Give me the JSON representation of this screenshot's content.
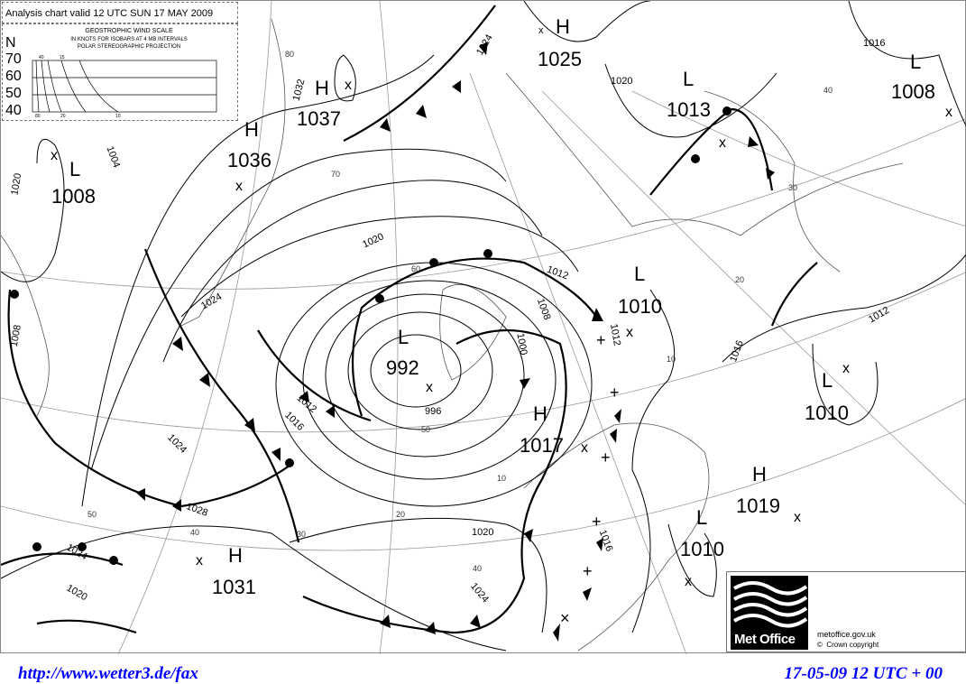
{
  "chart_title": "Analysis chart valid 12 UTC SUN 17 MAY 2009",
  "wind_scale": {
    "heading": "GEOSTROPHIC WIND SCALE",
    "line2": "IN KNOTS FOR ISOBARS AT  4 MB INTERVALS",
    "line3": "POLAR STEREOGRAPHIC PROJECTION",
    "latitude_unit": "N",
    "latitudes": [
      "70",
      "60",
      "50",
      "40"
    ],
    "top_labels": [
      "40",
      "15"
    ],
    "bottom_labels": [
      "80",
      "20",
      "10"
    ]
  },
  "pressure_centers": [
    {
      "type": "H",
      "value": "1025"
    },
    {
      "type": "L",
      "value": "1013"
    },
    {
      "type": "L",
      "value": "1008"
    },
    {
      "type": "H",
      "value": "1037"
    },
    {
      "type": "H",
      "value": "1036"
    },
    {
      "type": "L",
      "value": "1008"
    },
    {
      "type": "L",
      "value": "992"
    },
    {
      "type": "L",
      "value": "1010"
    },
    {
      "type": "H",
      "value": "1017"
    },
    {
      "type": "L",
      "value": "1010"
    },
    {
      "type": "H",
      "value": "1019"
    },
    {
      "type": "L",
      "value": "1010"
    },
    {
      "type": "H",
      "value": "1031"
    }
  ],
  "isobar_labels": [
    "1024",
    "1020",
    "1016",
    "1032",
    "1020",
    "1024",
    "1012",
    "1016",
    "1024",
    "1028",
    "1024",
    "1020",
    "1020",
    "1024",
    "1012",
    "1016",
    "1012",
    "1008",
    "1012",
    "1008",
    "1000",
    "1016",
    "996",
    "1020",
    "1004"
  ],
  "latitude_labels": [
    "80",
    "70",
    "60",
    "50",
    "40",
    "30",
    "20",
    "10",
    "40",
    "50",
    "40",
    "30",
    "20",
    "10"
  ],
  "logo": {
    "name": "Met Office",
    "url": "metoffice.gov.uk",
    "copyright": "Crown copyright",
    "copyright_symbol": "©"
  },
  "footer": {
    "source_url": "http://www.wetter3.de/fax",
    "valid_time": "17-05-09 12 UTC + 00",
    "color": "#0000ff"
  }
}
